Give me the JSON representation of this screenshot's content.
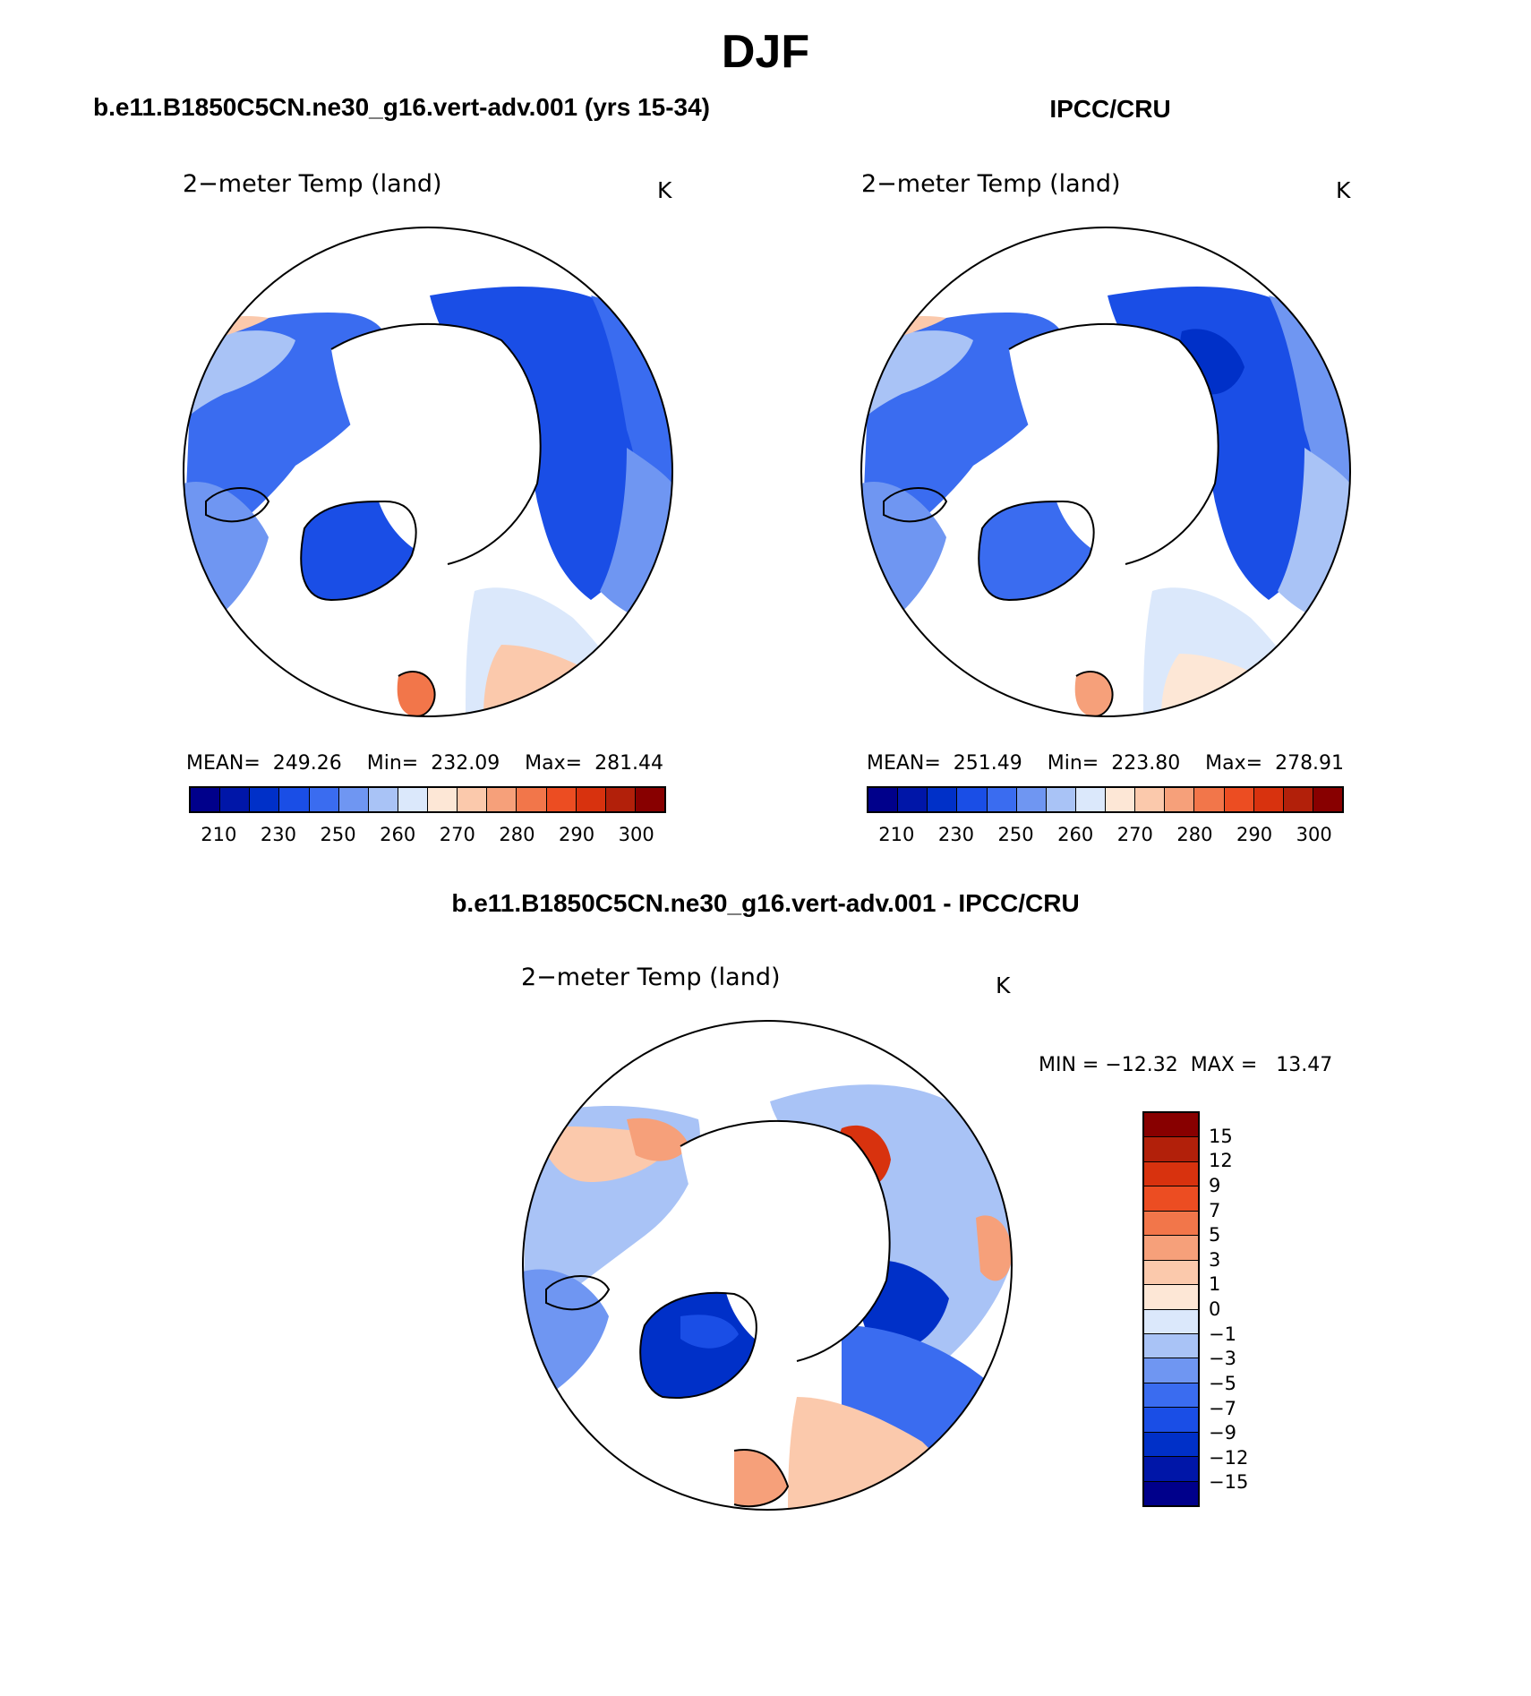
{
  "title": "DJF",
  "panels": {
    "left": {
      "case_title": "b.e11.B1850C5CN.ne30_g16.vert-adv.001 (yrs 15-34)",
      "variable": "2−meter Temp (land)",
      "units": "K",
      "stats": "MEAN=  249.26    Min=  232.09    Max=  281.44"
    },
    "right": {
      "case_title": "IPCC/CRU",
      "variable": "2−meter Temp (land)",
      "units": "K",
      "stats": "MEAN=  251.49    Min=  223.80    Max=  278.91"
    },
    "diff": {
      "case_title": "b.e11.B1850C5CN.ne30_g16.vert-adv.001 - IPCC/CRU",
      "variable": "2−meter Temp (land)",
      "units": "K",
      "stats": "MIN = −12.32  MAX =   13.47"
    }
  },
  "abs_colorbar": {
    "colors": [
      "#00008b",
      "#0016a8",
      "#0030c8",
      "#1a4ee6",
      "#3a6cf0",
      "#6f96f2",
      "#a9c3f6",
      "#dbe8fb",
      "#fde7d6",
      "#fbc9ac",
      "#f6a07a",
      "#f2764a",
      "#ec4d22",
      "#d8320e",
      "#b2200a",
      "#880000"
    ],
    "labels": [
      "210",
      "230",
      "250",
      "260",
      "270",
      "280",
      "290",
      "300"
    ]
  },
  "diff_colorbar": {
    "colors": [
      "#880000",
      "#b2200a",
      "#d8320e",
      "#ec4d22",
      "#f2764a",
      "#f6a07a",
      "#fbc9ac",
      "#fde7d6",
      "#dbe8fb",
      "#a9c3f6",
      "#6f96f2",
      "#3a6cf0",
      "#1a4ee6",
      "#0030c8",
      "#0016a8",
      "#00008b"
    ],
    "labels": [
      "15",
      "12",
      "9",
      "7",
      "5",
      "3",
      "1",
      "0",
      "−1",
      "−3",
      "−5",
      "−7",
      "−9",
      "−12",
      "−15"
    ]
  }
}
